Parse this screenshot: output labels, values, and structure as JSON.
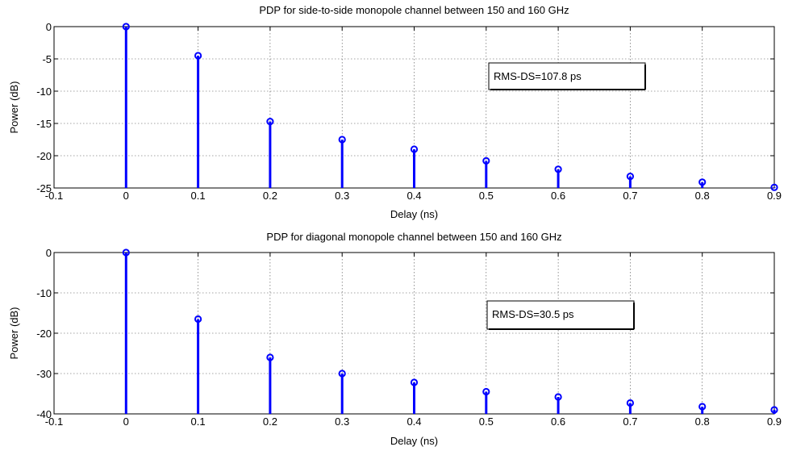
{
  "chart_data": [
    {
      "type": "stem",
      "title": "PDP for side-to-side monopole channel between 150 and 160 GHz",
      "xlabel": "Delay (ns)",
      "ylabel": "Power (dB)",
      "xlim": [
        -0.1,
        0.9
      ],
      "ylim": [
        -25,
        0
      ],
      "xticks": [
        "-0.1",
        "0",
        "0.1",
        "0.2",
        "0.3",
        "0.4",
        "0.5",
        "0.6",
        "0.7",
        "0.8",
        "0.9"
      ],
      "yticks": [
        "0",
        "-5",
        "-10",
        "-15",
        "-20",
        "-25"
      ],
      "xtick_values": [
        -0.1,
        0,
        0.1,
        0.2,
        0.3,
        0.4,
        0.5,
        0.6,
        0.7,
        0.8,
        0.9
      ],
      "ytick_values": [
        0,
        -5,
        -10,
        -15,
        -20,
        -25
      ],
      "grid": true,
      "series": [
        {
          "x": [
            0,
            0.1,
            0.2,
            0.3,
            0.4,
            0.5,
            0.6,
            0.7,
            0.8,
            0.9
          ],
          "y": [
            0,
            -4.5,
            -14.7,
            -17.5,
            -19.0,
            -20.8,
            -22.1,
            -23.2,
            -24.1,
            -24.9
          ],
          "color": "#0000ff"
        }
      ],
      "annotation": "RMS-DS=107.8 ps"
    },
    {
      "type": "stem",
      "title": "PDP for diagonal monopole channel between 150 and 160 GHz",
      "xlabel": "Delay (ns)",
      "ylabel": "Power (dB)",
      "xlim": [
        -0.1,
        0.9
      ],
      "ylim": [
        -40,
        0
      ],
      "xticks": [
        "-0.1",
        "0",
        "0.1",
        "0.2",
        "0.3",
        "0.4",
        "0.5",
        "0.6",
        "0.7",
        "0.8",
        "0.9"
      ],
      "yticks": [
        "0",
        "-10",
        "-20",
        "-30",
        "-40"
      ],
      "xtick_values": [
        -0.1,
        0,
        0.1,
        0.2,
        0.3,
        0.4,
        0.5,
        0.6,
        0.7,
        0.8,
        0.9
      ],
      "ytick_values": [
        0,
        -10,
        -20,
        -30,
        -40
      ],
      "grid": true,
      "series": [
        {
          "x": [
            0,
            0.1,
            0.2,
            0.3,
            0.4,
            0.5,
            0.6,
            0.7,
            0.8,
            0.9
          ],
          "y": [
            0,
            -16.5,
            -26.0,
            -30.0,
            -32.2,
            -34.5,
            -35.8,
            -37.3,
            -38.2,
            -39.0
          ],
          "color": "#0000ff"
        }
      ],
      "annotation": "RMS-DS=30.5 ps"
    }
  ]
}
